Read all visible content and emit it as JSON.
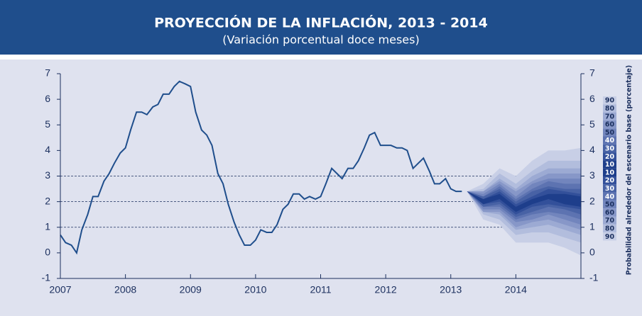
{
  "chart_data": {
    "type": "line",
    "title": "PROYECCIÓN DE LA INFLACIÓN, 2013 - 2014",
    "subtitle": "(Variación porcentual doce meses)",
    "y2_label": "Probabilidad alrededor del escenario base (porcentaje)",
    "color": "#1f4e8c",
    "x": [
      2007.0,
      2007.08,
      2007.17,
      2007.25,
      2007.33,
      2007.42,
      2007.5,
      2007.58,
      2007.67,
      2007.75,
      2007.83,
      2007.92,
      2008.0,
      2008.08,
      2008.17,
      2008.25,
      2008.33,
      2008.42,
      2008.5,
      2008.58,
      2008.67,
      2008.75,
      2008.83,
      2008.92,
      2009.0,
      2009.08,
      2009.17,
      2009.25,
      2009.33,
      2009.42,
      2009.5,
      2009.58,
      2009.67,
      2009.75,
      2009.83,
      2009.92,
      2010.0,
      2010.08,
      2010.17,
      2010.25,
      2010.33,
      2010.42,
      2010.5,
      2010.58,
      2010.67,
      2010.75,
      2010.83,
      2010.92,
      2011.0,
      2011.08,
      2011.17,
      2011.25,
      2011.33,
      2011.42,
      2011.5,
      2011.58,
      2011.67,
      2011.75,
      2011.83,
      2011.92,
      2012.0,
      2012.08,
      2012.17,
      2012.25,
      2012.33,
      2012.42,
      2012.5,
      2012.58,
      2012.67,
      2012.75,
      2012.83,
      2012.92,
      2013.0,
      2013.08,
      2013.17
    ],
    "values": [
      0.7,
      0.4,
      0.3,
      0.0,
      0.9,
      1.5,
      2.2,
      2.2,
      2.8,
      3.1,
      3.5,
      3.9,
      4.1,
      4.8,
      5.5,
      5.5,
      5.4,
      5.7,
      5.8,
      6.2,
      6.2,
      6.5,
      6.7,
      6.6,
      6.5,
      5.5,
      4.8,
      4.6,
      4.2,
      3.1,
      2.7,
      1.9,
      1.2,
      0.7,
      0.3,
      0.3,
      0.5,
      0.9,
      0.8,
      0.8,
      1.1,
      1.7,
      1.9,
      2.3,
      2.3,
      2.1,
      2.2,
      2.1,
      2.2,
      2.7,
      3.3,
      3.1,
      2.9,
      3.3,
      3.3,
      3.6,
      4.1,
      4.6,
      4.7,
      4.2,
      4.2,
      4.2,
      4.1,
      4.1,
      4.0,
      3.3,
      3.5,
      3.7,
      3.2,
      2.7,
      2.7,
      2.9,
      2.5,
      2.4,
      2.4
    ],
    "xlim": [
      2007,
      2015
    ],
    "xticks": [
      2007,
      2008,
      2009,
      2010,
      2011,
      2012,
      2013,
      2014
    ],
    "ylim": [
      -1,
      7
    ],
    "yticks": [
      -1,
      0,
      1,
      2,
      3,
      4,
      5,
      6,
      7
    ],
    "y2lim": [
      -1,
      7
    ],
    "y2ticks": [
      -1,
      0,
      1,
      2,
      3,
      4,
      5,
      6,
      7
    ],
    "grid_values": [
      1,
      2,
      3
    ],
    "fan": {
      "x": [
        2013.25,
        2013.5,
        2013.75,
        2014.0,
        2014.25,
        2014.5,
        2014.75,
        2015.0
      ],
      "bands": [
        {
          "name": "90",
          "color": "#c8cfe6",
          "upper": [
            2.4,
            2.7,
            3.3,
            3.0,
            3.6,
            4.0,
            4.0,
            4.1
          ],
          "lower": [
            2.4,
            1.3,
            1.1,
            0.4,
            0.4,
            0.4,
            0.2,
            -0.1
          ]
        },
        {
          "name": "80",
          "color": "#b2bddd",
          "upper": [
            2.4,
            2.5,
            3.1,
            2.7,
            3.2,
            3.6,
            3.6,
            3.6
          ],
          "lower": [
            2.4,
            1.5,
            1.3,
            0.7,
            0.8,
            0.8,
            0.6,
            0.4
          ]
        },
        {
          "name": "70",
          "color": "#9caad3",
          "upper": [
            2.4,
            2.4,
            2.9,
            2.5,
            3.0,
            3.3,
            3.3,
            3.3
          ],
          "lower": [
            2.4,
            1.6,
            1.5,
            0.9,
            1.0,
            1.1,
            0.9,
            0.7
          ]
        },
        {
          "name": "60",
          "color": "#8797c8",
          "upper": [
            2.4,
            2.4,
            2.8,
            2.4,
            2.8,
            3.1,
            3.1,
            3.1
          ],
          "lower": [
            2.4,
            1.6,
            1.6,
            1.0,
            1.2,
            1.3,
            1.1,
            0.9
          ]
        },
        {
          "name": "50",
          "color": "#7285bd",
          "upper": [
            2.4,
            2.3,
            2.7,
            2.2,
            2.7,
            2.9,
            2.9,
            2.9
          ],
          "lower": [
            2.4,
            1.7,
            1.7,
            1.2,
            1.3,
            1.5,
            1.3,
            1.1
          ]
        },
        {
          "name": "40",
          "color": "#5d73b1",
          "upper": [
            2.4,
            2.2,
            2.6,
            2.1,
            2.5,
            2.8,
            2.7,
            2.7
          ],
          "lower": [
            2.4,
            1.8,
            1.8,
            1.3,
            1.5,
            1.6,
            1.5,
            1.3
          ]
        },
        {
          "name": "30",
          "color": "#4862a5",
          "upper": [
            2.4,
            2.2,
            2.5,
            2.0,
            2.4,
            2.6,
            2.5,
            2.5
          ],
          "lower": [
            2.4,
            1.8,
            1.9,
            1.4,
            1.6,
            1.8,
            1.7,
            1.5
          ]
        },
        {
          "name": "20",
          "color": "#33509a",
          "upper": [
            2.4,
            2.1,
            2.4,
            1.9,
            2.2,
            2.5,
            2.4,
            2.3
          ],
          "lower": [
            2.4,
            1.9,
            2.0,
            1.5,
            1.8,
            1.9,
            1.8,
            1.7
          ]
        },
        {
          "name": "10",
          "color": "#1e3e8b",
          "upper": [
            2.4,
            2.1,
            2.3,
            1.8,
            2.1,
            2.3,
            2.3,
            2.2
          ],
          "lower": [
            2.4,
            1.9,
            2.1,
            1.6,
            1.9,
            2.1,
            1.9,
            1.8
          ]
        }
      ]
    }
  }
}
